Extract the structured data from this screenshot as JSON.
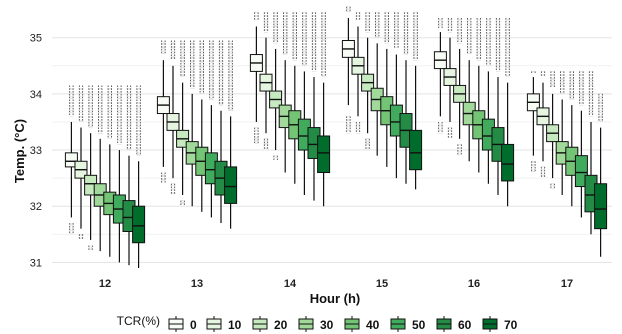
{
  "chart_data": {
    "type": "boxplot",
    "xlabel": "Hour (h)",
    "ylabel": "Temp. (°C)",
    "ylim": [
      30.9,
      35.6
    ],
    "yticks": [
      31,
      32,
      33,
      34,
      35
    ],
    "grid": true,
    "legend_position": "bottom",
    "legend_title": "TCR(%)",
    "categories": [
      "12",
      "13",
      "14",
      "15",
      "16",
      "17"
    ],
    "series": [
      {
        "name": "0",
        "color": "#f7fcf5",
        "boxes": [
          {
            "low": 31.8,
            "q1": 32.7,
            "median": 32.8,
            "q3": 32.95,
            "high": 33.5,
            "outlier_low": [
              31.7,
              31.6,
              31.5
            ],
            "outlier_high": [
              33.6,
              34.15
            ]
          },
          {
            "low": 32.7,
            "q1": 33.65,
            "median": 33.8,
            "q3": 33.95,
            "high": 34.6,
            "outlier_low": [
              32.6,
              32.4
            ],
            "outlier_high": [
              34.7,
              34.95
            ]
          },
          {
            "low": 33.5,
            "q1": 34.4,
            "median": 34.55,
            "q3": 34.7,
            "high": 35.2,
            "outlier_low": [
              33.4,
              33.1
            ],
            "outlier_high": [
              35.3,
              35.45
            ]
          },
          {
            "low": 33.8,
            "q1": 34.65,
            "median": 34.8,
            "q3": 34.95,
            "high": 35.35,
            "outlier_low": [
              33.6,
              33.3
            ],
            "outlier_high": [
              35.45,
              35.55
            ]
          },
          {
            "low": 33.6,
            "q1": 34.45,
            "median": 34.6,
            "q3": 34.75,
            "high": 35.1,
            "outlier_low": [
              33.5,
              33.3
            ],
            "outlier_high": [
              35.15,
              35.35
            ]
          },
          {
            "low": 32.9,
            "q1": 33.7,
            "median": 33.85,
            "q3": 34.0,
            "high": 34.3,
            "outlier_low": [
              32.8,
              32.6
            ],
            "outlier_high": [
              34.35,
              34.4
            ]
          }
        ]
      },
      {
        "name": "10",
        "color": "#e5f5e0",
        "boxes": [
          {
            "low": 31.6,
            "q1": 32.5,
            "median": 32.65,
            "q3": 32.8,
            "high": 33.4,
            "outlier_low": [
              31.5,
              31.4
            ],
            "outlier_high": [
              33.5,
              34.15
            ]
          },
          {
            "low": 32.5,
            "q1": 33.35,
            "median": 33.5,
            "q3": 33.65,
            "high": 34.5,
            "outlier_low": [
              32.4,
              32.2
            ],
            "outlier_high": [
              34.6,
              34.95
            ]
          },
          {
            "low": 33.3,
            "q1": 34.05,
            "median": 34.2,
            "q3": 34.35,
            "high": 35.0,
            "outlier_low": [
              33.2,
              33.0
            ],
            "outlier_high": [
              35.1,
              35.45
            ]
          },
          {
            "low": 33.6,
            "q1": 34.35,
            "median": 34.5,
            "q3": 34.65,
            "high": 35.2,
            "outlier_low": [
              33.5,
              33.3
            ],
            "outlier_high": [
              35.3,
              35.45
            ]
          },
          {
            "low": 33.5,
            "q1": 34.15,
            "median": 34.3,
            "q3": 34.45,
            "high": 35.0,
            "outlier_low": [
              33.4,
              33.2
            ],
            "outlier_high": [
              35.1,
              35.35
            ]
          },
          {
            "low": 32.8,
            "q1": 33.45,
            "median": 33.6,
            "q3": 33.75,
            "high": 34.2,
            "outlier_low": [
              32.7,
              32.5
            ],
            "outlier_high": [
              34.3,
              34.4
            ]
          }
        ]
      },
      {
        "name": "20",
        "color": "#c7e9c0",
        "boxes": [
          {
            "low": 31.4,
            "q1": 32.2,
            "median": 32.4,
            "q3": 32.55,
            "high": 33.3,
            "outlier_low": [
              31.3,
              31.2
            ],
            "outlier_high": [
              33.4,
              34.15
            ]
          },
          {
            "low": 32.2,
            "q1": 33.05,
            "median": 33.2,
            "q3": 33.35,
            "high": 34.2,
            "outlier_low": [
              32.1,
              32.0
            ],
            "outlier_high": [
              34.3,
              34.95
            ]
          },
          {
            "low": 33.0,
            "q1": 33.75,
            "median": 33.9,
            "q3": 34.05,
            "high": 34.8,
            "outlier_low": [
              32.9,
              32.8
            ],
            "outlier_high": [
              34.9,
              35.45
            ]
          },
          {
            "low": 33.3,
            "q1": 34.05,
            "median": 34.2,
            "q3": 34.35,
            "high": 35.0,
            "outlier_low": [
              33.2,
              33.0
            ],
            "outlier_high": [
              35.1,
              35.45
            ]
          },
          {
            "low": 33.2,
            "q1": 33.85,
            "median": 34.0,
            "q3": 34.15,
            "high": 34.8,
            "outlier_low": [
              33.1,
              32.9
            ],
            "outlier_high": [
              34.9,
              35.35
            ]
          },
          {
            "low": 32.5,
            "q1": 33.15,
            "median": 33.3,
            "q3": 33.45,
            "high": 34.0,
            "outlier_low": [
              32.4,
              32.3
            ],
            "outlier_high": [
              34.1,
              34.4
            ]
          }
        ]
      },
      {
        "name": "30",
        "color": "#a1d99b",
        "boxes": [
          {
            "low": 31.2,
            "q1": 32.0,
            "median": 32.2,
            "q3": 32.4,
            "high": 33.2,
            "outlier_low": [],
            "outlier_high": [
              33.3,
              34.15
            ]
          },
          {
            "low": 32.0,
            "q1": 32.75,
            "median": 32.95,
            "q3": 33.15,
            "high": 34.0,
            "outlier_low": [],
            "outlier_high": [
              34.1,
              34.95
            ]
          },
          {
            "low": 32.6,
            "q1": 33.4,
            "median": 33.6,
            "q3": 33.8,
            "high": 34.6,
            "outlier_low": [],
            "outlier_high": [
              34.7,
              35.45
            ]
          },
          {
            "low": 32.9,
            "q1": 33.7,
            "median": 33.9,
            "q3": 34.1,
            "high": 34.9,
            "outlier_low": [],
            "outlier_high": [
              35.0,
              35.45
            ]
          },
          {
            "low": 32.8,
            "q1": 33.45,
            "median": 33.65,
            "q3": 33.85,
            "high": 34.6,
            "outlier_low": [],
            "outlier_high": [
              34.7,
              35.35
            ]
          },
          {
            "low": 32.2,
            "q1": 32.75,
            "median": 32.95,
            "q3": 33.15,
            "high": 33.9,
            "outlier_low": [],
            "outlier_high": [
              34.0,
              34.4
            ]
          }
        ]
      },
      {
        "name": "40",
        "color": "#74c476",
        "boxes": [
          {
            "low": 31.1,
            "q1": 31.85,
            "median": 32.05,
            "q3": 32.25,
            "high": 33.1,
            "outlier_low": [],
            "outlier_high": [
              33.2,
              34.15
            ]
          },
          {
            "low": 31.9,
            "q1": 32.55,
            "median": 32.8,
            "q3": 33.05,
            "high": 33.9,
            "outlier_low": [],
            "outlier_high": [
              34.0,
              34.95
            ]
          },
          {
            "low": 32.4,
            "q1": 33.2,
            "median": 33.45,
            "q3": 33.7,
            "high": 34.5,
            "outlier_low": [],
            "outlier_high": [
              34.6,
              35.45
            ]
          },
          {
            "low": 32.7,
            "q1": 33.45,
            "median": 33.7,
            "q3": 33.95,
            "high": 34.8,
            "outlier_low": [],
            "outlier_high": [
              34.9,
              35.45
            ]
          },
          {
            "low": 32.6,
            "q1": 33.2,
            "median": 33.45,
            "q3": 33.7,
            "high": 34.5,
            "outlier_low": [],
            "outlier_high": [
              34.6,
              35.35
            ]
          },
          {
            "low": 32.0,
            "q1": 32.55,
            "median": 32.8,
            "q3": 33.05,
            "high": 33.8,
            "outlier_low": [],
            "outlier_high": [
              33.9,
              34.4
            ]
          }
        ]
      },
      {
        "name": "50",
        "color": "#41ab5d",
        "boxes": [
          {
            "low": 31.0,
            "q1": 31.7,
            "median": 31.95,
            "q3": 32.2,
            "high": 33.0,
            "outlier_low": [],
            "outlier_high": [
              33.1,
              34.15
            ]
          },
          {
            "low": 31.8,
            "q1": 32.4,
            "median": 32.65,
            "q3": 32.95,
            "high": 33.8,
            "outlier_low": [],
            "outlier_high": [
              33.9,
              34.95
            ]
          },
          {
            "low": 32.2,
            "q1": 33.0,
            "median": 33.25,
            "q3": 33.55,
            "high": 34.4,
            "outlier_low": [],
            "outlier_high": [
              34.5,
              35.45
            ]
          },
          {
            "low": 32.5,
            "q1": 33.25,
            "median": 33.5,
            "q3": 33.8,
            "high": 34.7,
            "outlier_low": [],
            "outlier_high": [
              34.8,
              35.45
            ]
          },
          {
            "low": 32.4,
            "q1": 33.0,
            "median": 33.25,
            "q3": 33.55,
            "high": 34.4,
            "outlier_low": [],
            "outlier_high": [
              34.5,
              35.35
            ]
          },
          {
            "low": 31.8,
            "q1": 32.35,
            "median": 32.6,
            "q3": 32.9,
            "high": 33.7,
            "outlier_low": [],
            "outlier_high": [
              33.8,
              34.4
            ]
          }
        ]
      },
      {
        "name": "60",
        "color": "#238b45",
        "boxes": [
          {
            "low": 30.95,
            "q1": 31.55,
            "median": 31.8,
            "q3": 32.1,
            "high": 32.9,
            "outlier_low": [],
            "outlier_high": [
              33.0,
              34.15
            ]
          },
          {
            "low": 31.7,
            "q1": 32.2,
            "median": 32.5,
            "q3": 32.8,
            "high": 33.7,
            "outlier_low": [],
            "outlier_high": [
              33.8,
              34.95
            ]
          },
          {
            "low": 32.1,
            "q1": 32.85,
            "median": 33.1,
            "q3": 33.4,
            "high": 34.3,
            "outlier_low": [],
            "outlier_high": [
              34.4,
              35.45
            ]
          },
          {
            "low": 32.4,
            "q1": 33.05,
            "median": 33.35,
            "q3": 33.65,
            "high": 34.6,
            "outlier_low": [],
            "outlier_high": [
              34.7,
              35.45
            ]
          },
          {
            "low": 32.2,
            "q1": 32.8,
            "median": 33.1,
            "q3": 33.4,
            "high": 34.3,
            "outlier_low": [],
            "outlier_high": [
              34.4,
              35.35
            ]
          },
          {
            "low": 31.5,
            "q1": 31.9,
            "median": 32.2,
            "q3": 32.55,
            "high": 33.5,
            "outlier_low": [],
            "outlier_high": [
              33.6,
              34.4
            ]
          }
        ]
      },
      {
        "name": "70",
        "color": "#006d2c",
        "boxes": [
          {
            "low": 30.9,
            "q1": 31.35,
            "median": 31.65,
            "q3": 32.0,
            "high": 32.8,
            "outlier_low": [],
            "outlier_high": [
              32.9,
              34.15
            ]
          },
          {
            "low": 31.6,
            "q1": 32.05,
            "median": 32.35,
            "q3": 32.7,
            "high": 33.6,
            "outlier_low": [],
            "outlier_high": [
              33.7,
              34.95
            ]
          },
          {
            "low": 32.0,
            "q1": 32.6,
            "median": 32.95,
            "q3": 33.25,
            "high": 34.2,
            "outlier_low": [],
            "outlier_high": [
              34.3,
              35.45
            ]
          },
          {
            "low": 32.3,
            "q1": 32.65,
            "median": 32.95,
            "q3": 33.35,
            "high": 34.5,
            "outlier_low": [],
            "outlier_high": [
              34.6,
              35.45
            ]
          },
          {
            "low": 32.0,
            "q1": 32.45,
            "median": 32.75,
            "q3": 33.1,
            "high": 34.2,
            "outlier_low": [],
            "outlier_high": [
              34.3,
              35.35
            ]
          },
          {
            "low": 31.1,
            "q1": 31.6,
            "median": 31.95,
            "q3": 32.4,
            "high": 33.4,
            "outlier_low": [],
            "outlier_high": [
              33.5,
              34.0
            ]
          }
        ]
      }
    ]
  }
}
